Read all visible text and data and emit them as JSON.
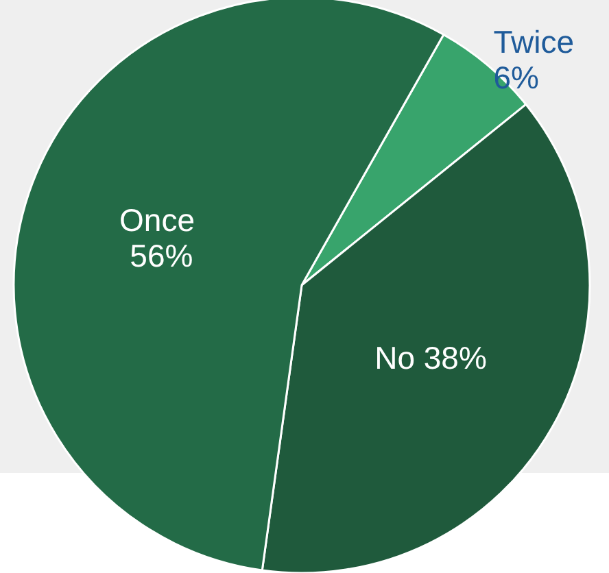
{
  "chart_data": {
    "type": "pie",
    "categories": [
      "Twice",
      "No",
      "Once"
    ],
    "values": [
      6,
      38,
      56
    ],
    "colors": [
      "#38a46c",
      "#1f5a3c",
      "#236b47"
    ],
    "value_labels": [
      "6%",
      "38%",
      "56%"
    ]
  }
}
